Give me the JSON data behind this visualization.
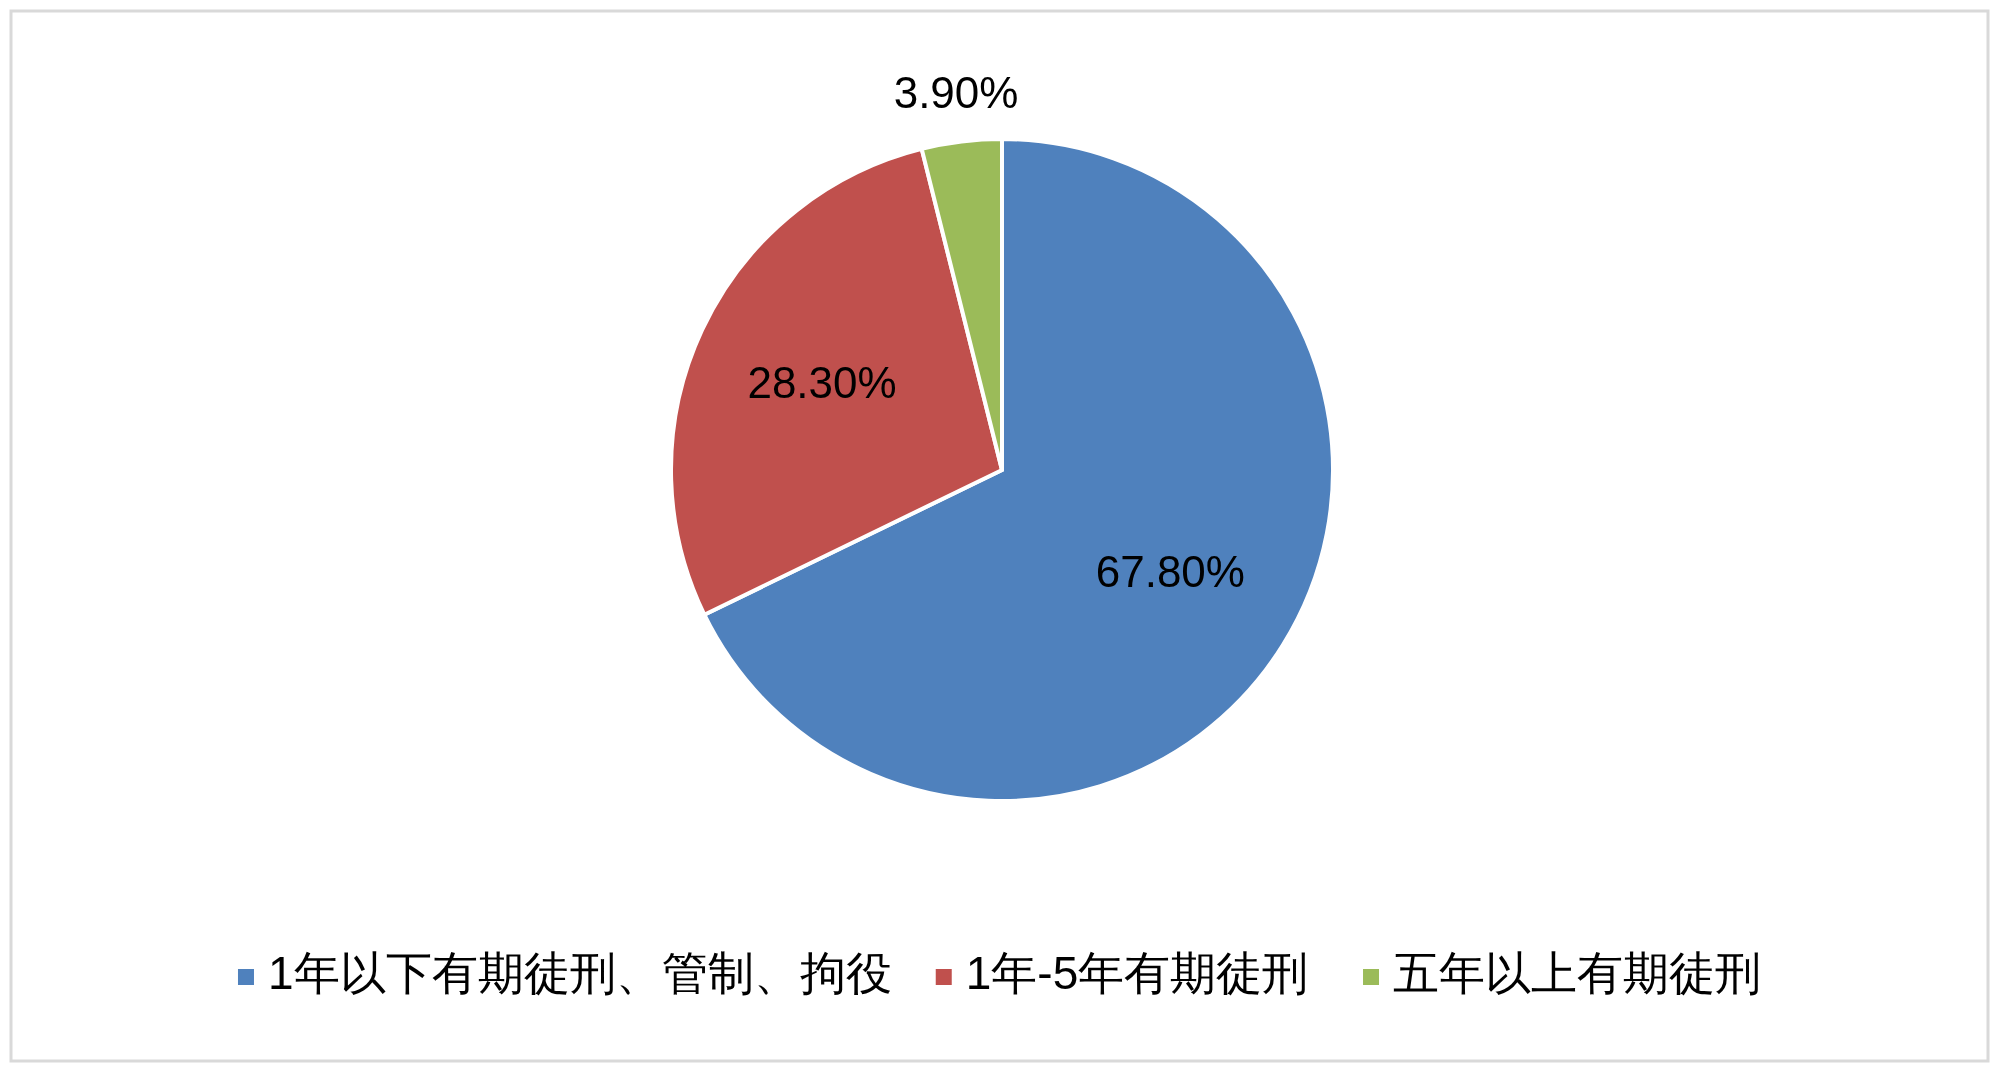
{
  "chart_data": {
    "type": "pie",
    "categories": [
      "1年以下有期徒刑、管制、拘役",
      "1年-5年有期徒刑",
      "五年以上有期徒刑"
    ],
    "values": [
      67.8,
      28.3,
      3.9
    ],
    "colors": [
      "#4f81bd",
      "#c0504d",
      "#9bbb59"
    ],
    "value_labels": [
      "67.80%",
      "28.30%",
      "3.90%"
    ],
    "legend": "bottom"
  }
}
